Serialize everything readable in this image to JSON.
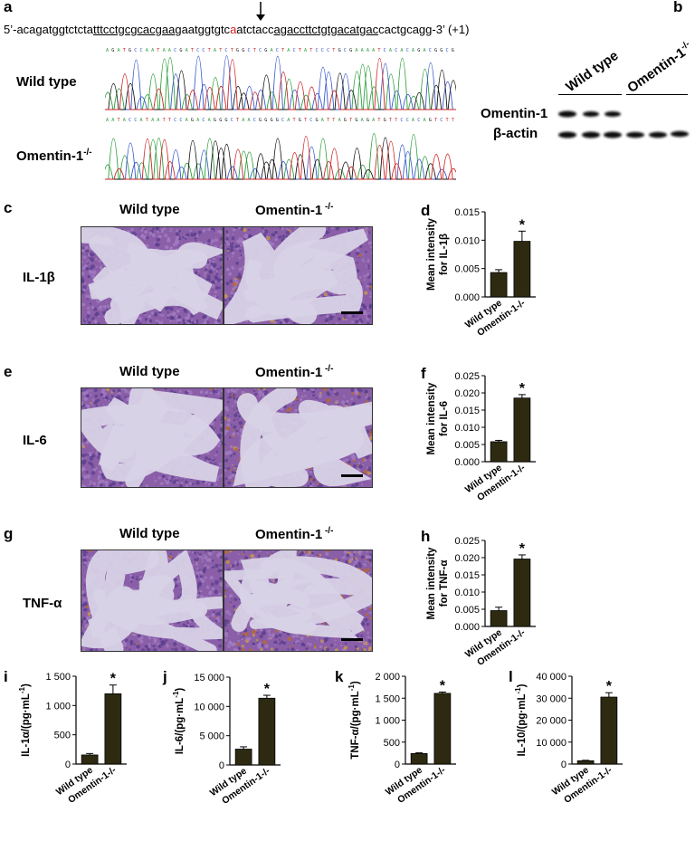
{
  "panels": {
    "a": {
      "label": "a",
      "sequence": {
        "prefix": "5’-acagatggtctcta",
        "underline1": "tttcctgcgcacgaa",
        "middle1": "gaatggtgtc",
        "mutation": "a",
        "middle2": "atctacc",
        "underline2": "agaccttctgtgacatgac",
        "suffix": "cactgcagg-3’ (+1)"
      },
      "sample1": "Wild type",
      "sample2": "Omentin-1",
      "sample2_sup": "-/-",
      "colors": {
        "A": "#2a9d3a",
        "C": "#3355cc",
        "G": "#111111",
        "T": "#cc2222"
      }
    },
    "b": {
      "label": "b",
      "group1": "Wild type",
      "group2": "Omentin-1",
      "group2_sup": "-/-",
      "band1": "Omentin-1",
      "band2": "β-actin"
    },
    "c": {
      "label": "c",
      "col1": "Wild type",
      "col2": "Omentin-1",
      "col2_sup": " -/-",
      "marker": "IL-1β"
    },
    "e": {
      "label": "e",
      "col1": "Wild type",
      "col2": "Omentin-1",
      "col2_sup": " -/-",
      "marker": "IL-6"
    },
    "g": {
      "label": "g",
      "col1": "Wild type",
      "col2": "Omentin-1",
      "col2_sup": " -/-",
      "marker": "TNF-α"
    }
  },
  "chart_data": [
    {
      "id": "d",
      "label": "d",
      "type": "bar",
      "categories": [
        "Wild type",
        "Omentin-1-/-"
      ],
      "values": [
        0.0043,
        0.0098
      ],
      "errors": [
        0.0005,
        0.0018
      ],
      "ylabel_line1": "Mean intensity",
      "ylabel_line2": "for IL-1β",
      "ylim": [
        0,
        0.015
      ],
      "yticks": [
        "0.000",
        "0.005",
        "0.010",
        "0.015"
      ],
      "sig": [
        false,
        true
      ],
      "sig_mark": "*"
    },
    {
      "id": "f",
      "label": "f",
      "type": "bar",
      "categories": [
        "Wild type",
        "Omentin-1-/-"
      ],
      "values": [
        0.0058,
        0.0185
      ],
      "errors": [
        0.0004,
        0.001
      ],
      "ylabel_line1": "Mean intensity",
      "ylabel_line2": "for IL-6",
      "ylim": [
        0,
        0.025
      ],
      "yticks": [
        "0.000",
        "0.005",
        "0.010",
        "0.015",
        "0.020",
        "0.025"
      ],
      "sig": [
        false,
        true
      ],
      "sig_mark": "*"
    },
    {
      "id": "h",
      "label": "h",
      "type": "bar",
      "categories": [
        "Wild type",
        "Omentin-1-/-"
      ],
      "values": [
        0.0046,
        0.0196
      ],
      "errors": [
        0.001,
        0.0012
      ],
      "ylabel_line1": "Mean intensity",
      "ylabel_line2": "for TNF-α",
      "ylim": [
        0,
        0.025
      ],
      "yticks": [
        "0.000",
        "0.005",
        "0.010",
        "0.015",
        "0.020",
        "0.025"
      ],
      "sig": [
        false,
        true
      ],
      "sig_mark": "*"
    },
    {
      "id": "i",
      "label": "i",
      "type": "bar",
      "categories": [
        "Wild type",
        "Omentin-1-/-"
      ],
      "values": [
        155,
        1200
      ],
      "errors": [
        25,
        150
      ],
      "ylabel_line1": "IL-1α/(pg·mL",
      "ylabel_sup": "-1",
      "ylabel_end": ")",
      "ylim": [
        0,
        1500
      ],
      "yticks": [
        "0",
        "500",
        "1 000",
        "1 500"
      ],
      "sig": [
        false,
        true
      ],
      "sig_mark": "*"
    },
    {
      "id": "j",
      "label": "j",
      "type": "bar",
      "categories": [
        "Wild type",
        "Omentin-1-/-"
      ],
      "values": [
        2700,
        11400
      ],
      "errors": [
        400,
        500
      ],
      "ylabel_line1": "IL-6/(pg·mL",
      "ylabel_sup": "-1",
      "ylabel_end": ")",
      "ylim": [
        0,
        15000
      ],
      "yticks": [
        "0",
        "5 000",
        "10 000",
        "15 000"
      ],
      "sig": [
        false,
        true
      ],
      "sig_mark": "*"
    },
    {
      "id": "k",
      "label": "k",
      "type": "bar",
      "categories": [
        "Wild type",
        "Omentin-1-/-"
      ],
      "values": [
        240,
        1610
      ],
      "errors": [
        15,
        30
      ],
      "ylabel_line1": "TNF-α/(pg·mL",
      "ylabel_sup": "-1",
      "ylabel_end": ")",
      "ylim": [
        0,
        2000
      ],
      "yticks": [
        "0",
        "500",
        "1 000",
        "1 500",
        "2 000"
      ],
      "sig": [
        false,
        true
      ],
      "sig_mark": "*"
    },
    {
      "id": "l",
      "label": "l",
      "type": "bar",
      "categories": [
        "Wild type",
        "Omentin-1-/-"
      ],
      "values": [
        1500,
        30500
      ],
      "errors": [
        200,
        2000
      ],
      "ylabel_line1": "IL-10/(pg·mL",
      "ylabel_sup": "-1",
      "ylabel_end": ")",
      "ylim": [
        0,
        40000
      ],
      "yticks": [
        "0",
        "10 000",
        "20 000",
        "30 000",
        "40 000"
      ],
      "sig": [
        false,
        true
      ],
      "sig_mark": "*"
    }
  ]
}
